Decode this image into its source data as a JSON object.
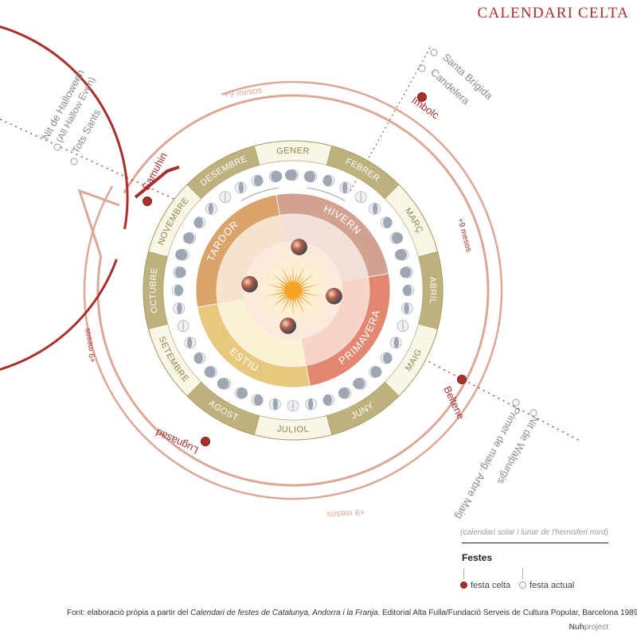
{
  "title": "CALENDARI CELTA",
  "subtitle": "(calendari solar i lunar de l'hemisferi nord)",
  "legend": {
    "title": "Festes",
    "celtic": "festa celta",
    "current": "festa actual"
  },
  "source": {
    "prefix": "Font:  elaboració pròpia a partir del ",
    "book": "Calendari de festes de Catalunya, Andorra i la Franja",
    "suffix": ". Editorial Alta Fulla/Fundació Serveis de Cultura Popular, Barcelona 1989."
  },
  "credit": {
    "brand": "Nuh",
    "rest": "project"
  },
  "months": [
    "GENER",
    "FEBRER",
    "MARÇ",
    "ABRIL",
    "MAIG",
    "JUNY",
    "JULIOL",
    "AGOST",
    "SETEMBRE",
    "OCTUBRE",
    "NOVEMBRE",
    "DESEMBRE"
  ],
  "seasons": [
    "HIVERN",
    "PRIMAVERA",
    "ESTIU",
    "TARDOR"
  ],
  "celtic_festivals": [
    "Imbolc",
    "Beltene",
    "Lugnasad",
    "Samuhin"
  ],
  "current_festivals": {
    "imbolc": [
      "Santa Brígida",
      "Candelera"
    ],
    "beltene": [
      "Primer de maig. Arbre Maig",
      "Nit de Walpurgis"
    ],
    "samuhin": [
      "Nit de Halloween",
      "(All Hallow Even)",
      "Tots Sants"
    ]
  },
  "interval_label": "+9 mesos",
  "colors": {
    "accent_red": "#a82f2b",
    "salmon": "#dba898",
    "month_band_gold": "#bdb17e",
    "month_band_cream": "#faf6e5",
    "hivern": "#d2a290",
    "primavera": "#e28872",
    "estiu": "#e7c87c",
    "tardor": "#d9a36a",
    "sun": "#f39019"
  }
}
